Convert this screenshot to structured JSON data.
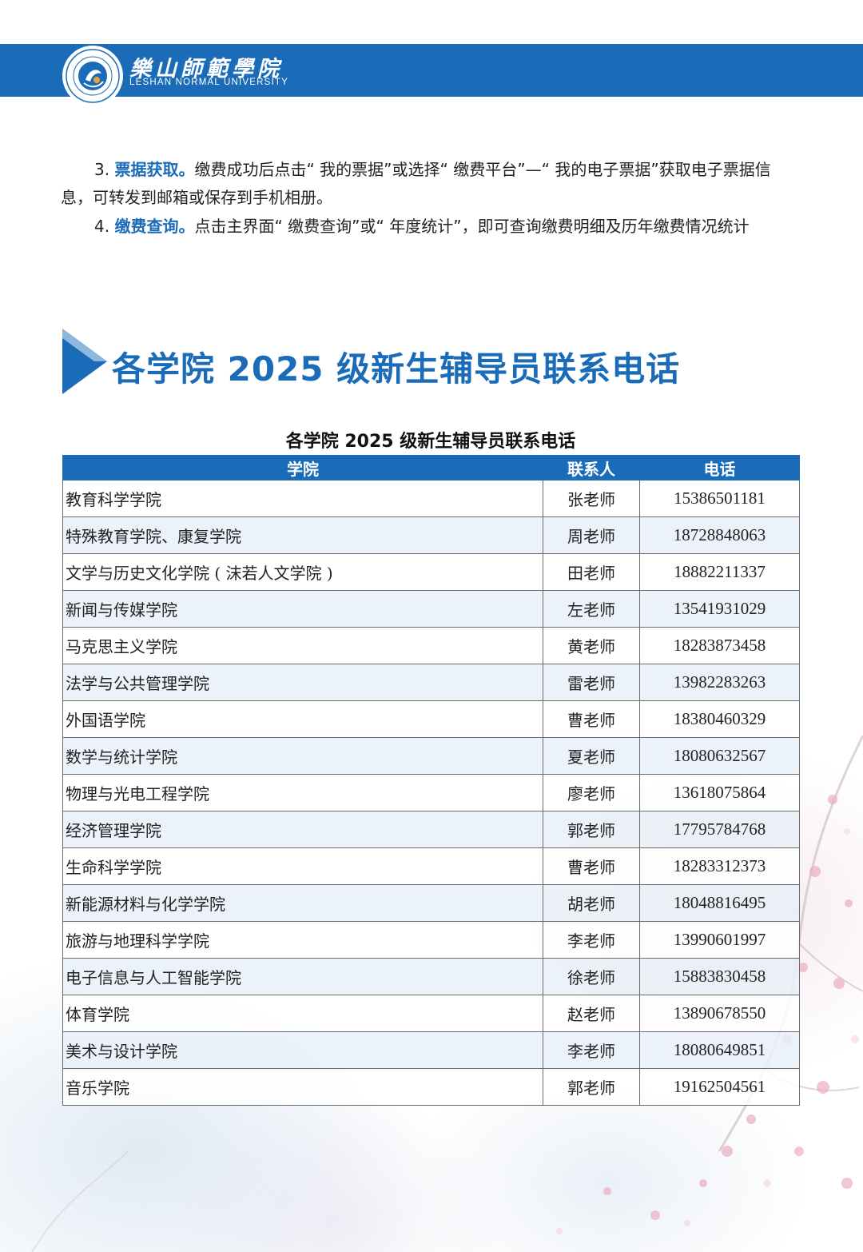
{
  "header": {
    "logo_title": "樂山師範學院",
    "logo_subtitle": "LESHAN NORMAL UNIVERSITY",
    "brand_color": "#1a6cb8"
  },
  "steps": [
    {
      "num": "3.",
      "keyword": "票据获取。",
      "text": "缴费成功后点击“ 我的票据”或选择“ 缴费平台”—“ 我的电子票据”获取电子票据信息，可转发到邮箱或保存到手机相册。"
    },
    {
      "num": "4.",
      "keyword": "缴费查询。",
      "text": "点击主界面“ 缴费查询”或“ 年度统计”，即可查询缴费明细及历年缴费情况统计"
    }
  ],
  "section_title": "各学院 2025 级新生辅导员联系电话",
  "table": {
    "caption": "各学院 2025 级新生辅导员联系电话",
    "headers": [
      "学院",
      "联系人",
      "电话"
    ],
    "rows": [
      [
        "教育科学学院",
        "张老师",
        "15386501181"
      ],
      [
        "特殊教育学院、康复学院",
        "周老师",
        "18728848063"
      ],
      [
        "文学与历史文化学院 ( 沫若人文学院 )",
        "田老师",
        "18882211337"
      ],
      [
        "新闻与传媒学院",
        "左老师",
        "13541931029"
      ],
      [
        "马克思主义学院",
        "黄老师",
        "18283873458"
      ],
      [
        "法学与公共管理学院",
        "雷老师",
        "13982283263"
      ],
      [
        "外国语学院",
        "曹老师",
        "18380460329"
      ],
      [
        "数学与统计学院",
        "夏老师",
        "18080632567"
      ],
      [
        "物理与光电工程学院",
        "廖老师",
        "13618075864"
      ],
      [
        "经济管理学院",
        "郭老师",
        "17795784768"
      ],
      [
        "生命科学学院",
        "曹老师",
        "18283312373"
      ],
      [
        "新能源材料与化学学院",
        "胡老师",
        "18048816495"
      ],
      [
        "旅游与地理科学学院",
        "李老师",
        "13990601997"
      ],
      [
        "电子信息与人工智能学院",
        "徐老师",
        "15883830458"
      ],
      [
        "体育学院",
        "赵老师",
        "13890678550"
      ],
      [
        "美术与设计学院",
        "李老师",
        "18080649851"
      ],
      [
        "音乐学院",
        "郭老师",
        "19162504561"
      ]
    ]
  }
}
